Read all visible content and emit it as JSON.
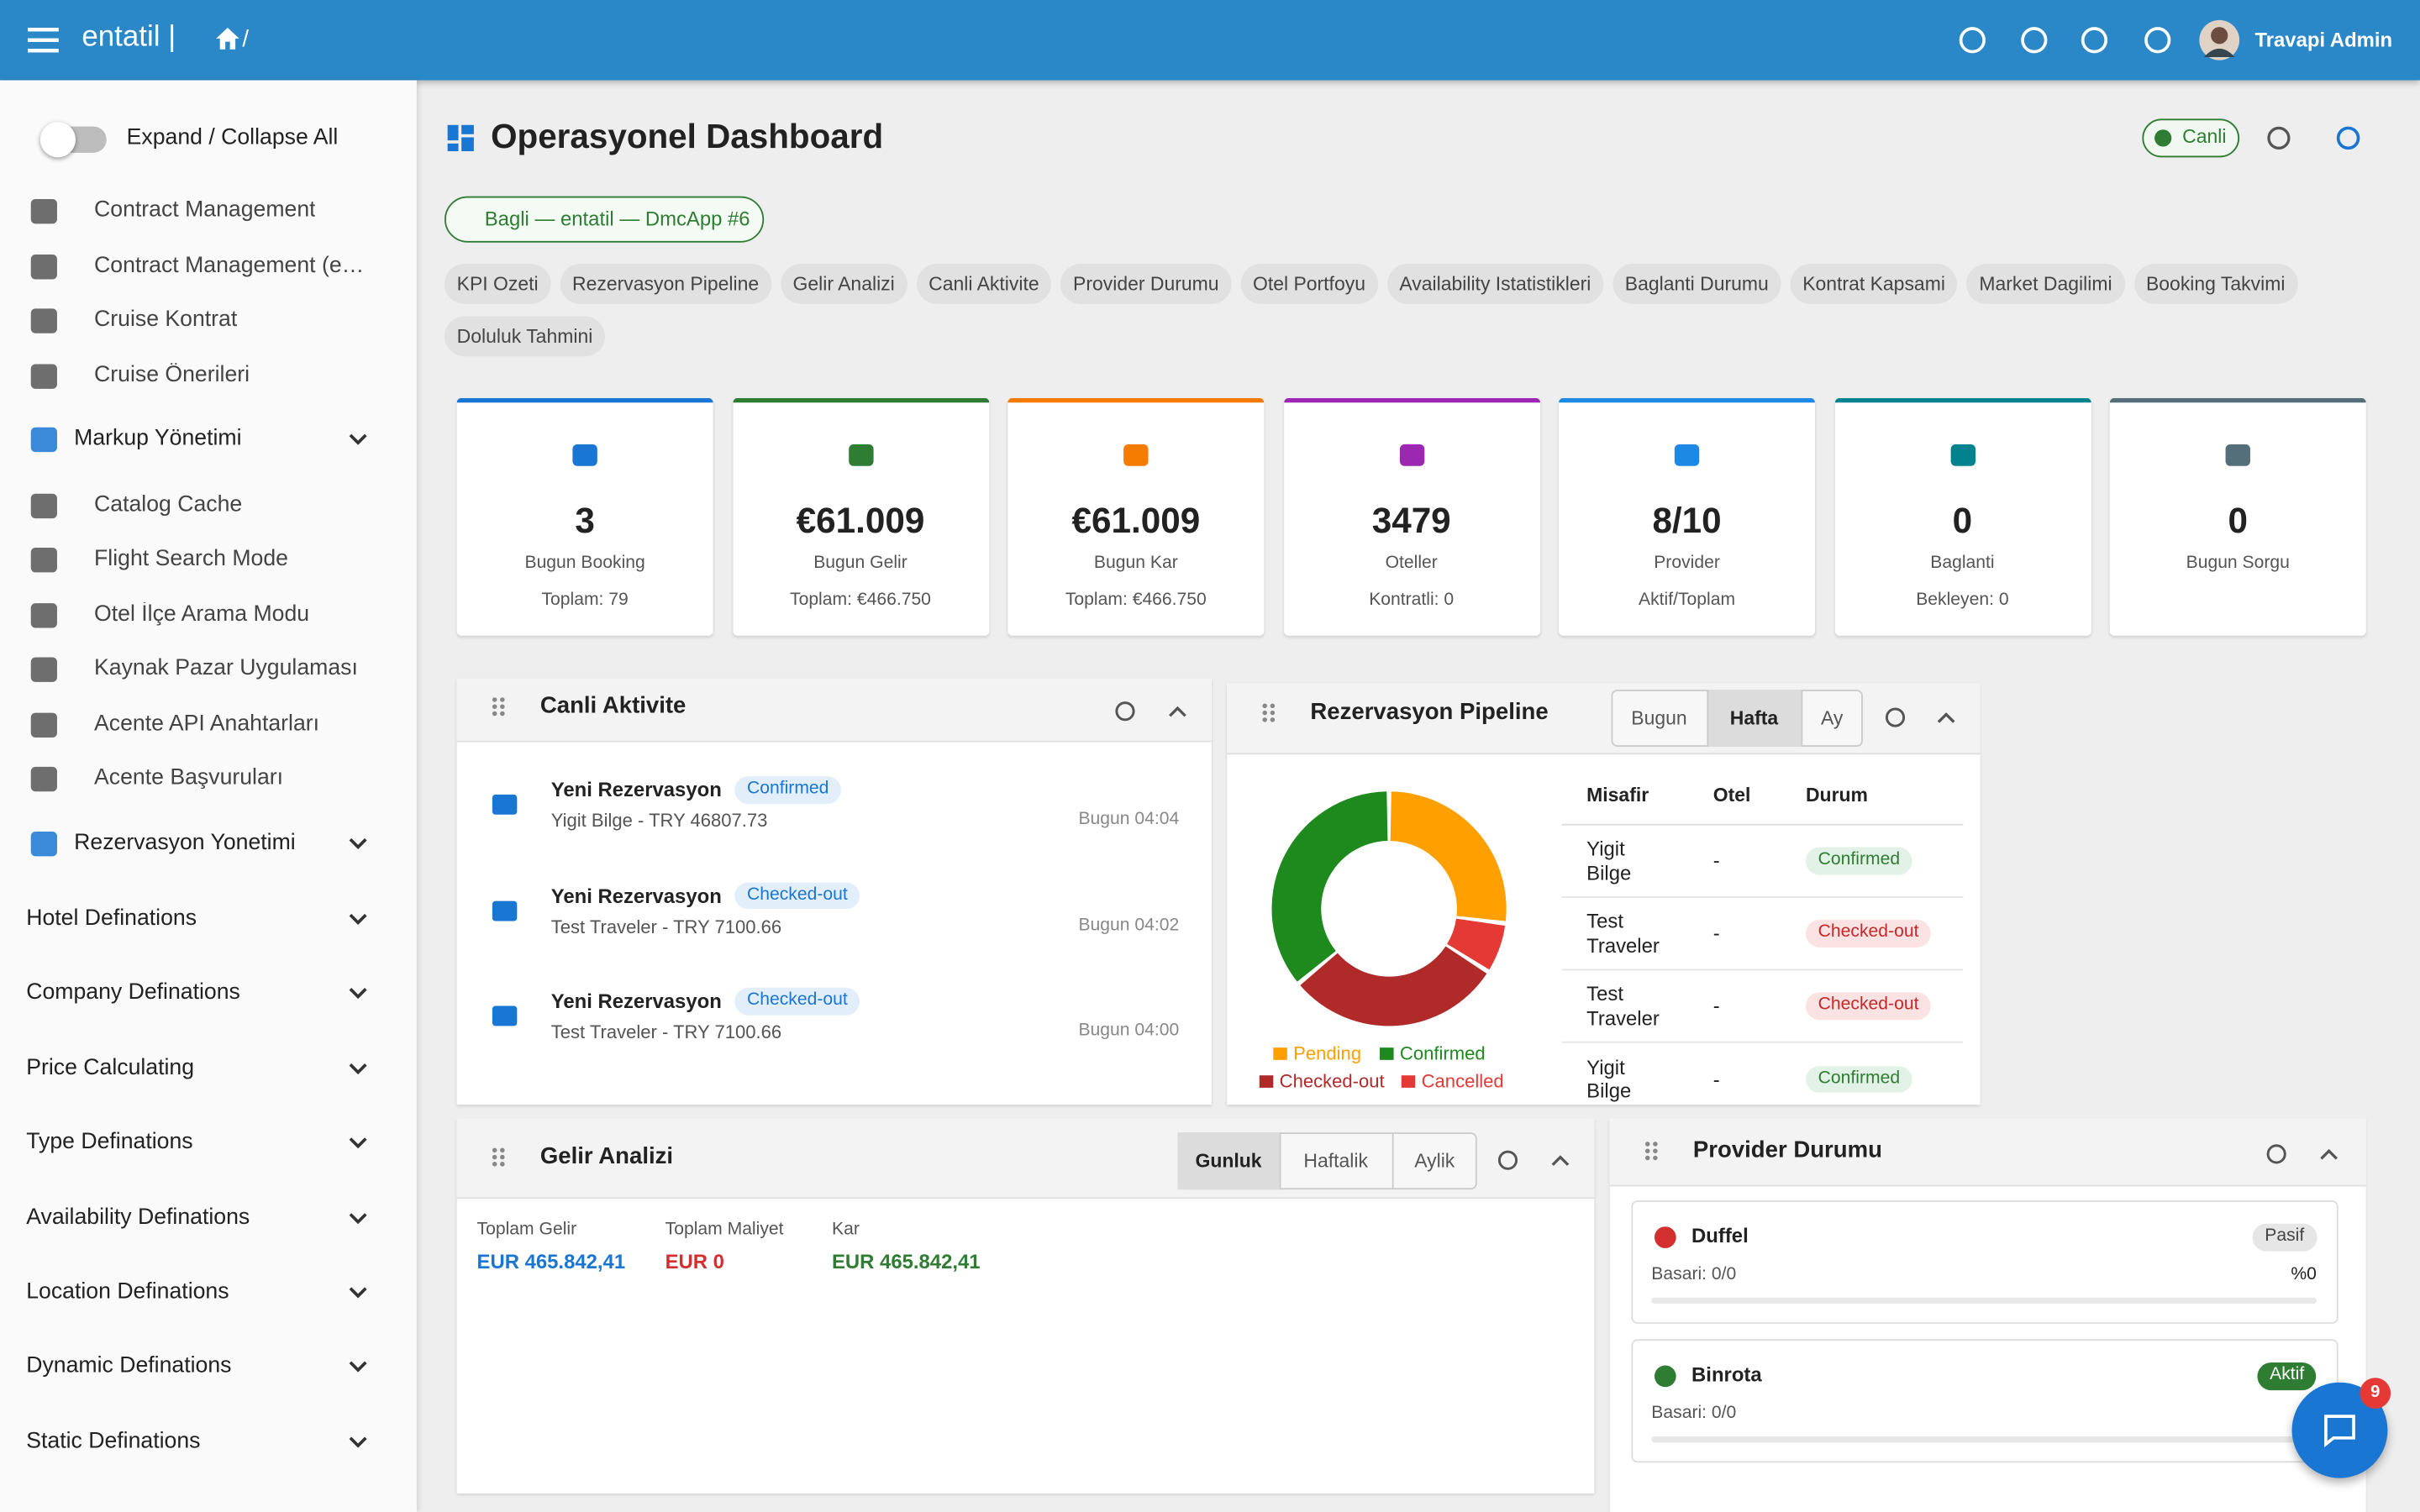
{
  "topbar": {
    "brand": "entatil |",
    "crumb": "/",
    "user": "Travapi Admin"
  },
  "sidebar": {
    "toggle": "Expand / Collapse All",
    "links1": [
      "Contract Management",
      "Contract Management (e…",
      "Cruise Kontrat",
      "Cruise Önerileri"
    ],
    "group1": "Markup Yönetimi",
    "links2": [
      "Catalog Cache",
      "Flight Search Mode",
      "Otel İlçe Arama Modu",
      "Kaynak Pazar Uygulaması",
      "Acente API Anahtarları",
      "Acente Başvuruları"
    ],
    "group2": "Rezervasyon Yonetimi",
    "sections": [
      "Hotel Definations",
      "Company Definations",
      "Price Calculating",
      "Type Definations",
      "Availability Definations",
      "Location Definations",
      "Dynamic Definations",
      "Static Definations"
    ]
  },
  "header": {
    "title": "Operasyonel Dashboard",
    "live": "Canli",
    "connection": "Bagli — entatil — DmcApp #6"
  },
  "chips": [
    "KPI Ozeti",
    "Rezervasyon Pipeline",
    "Gelir Analizi",
    "Canli Aktivite",
    "Provider Durumu",
    "Otel Portfoyu",
    "Availability Istatistikleri",
    "Baglanti Durumu",
    "Kontrat Kapsami",
    "Market Dagilimi",
    "Booking Takvimi",
    "Doluluk Tahmini"
  ],
  "kpis": [
    {
      "value": "3",
      "label": "Bugun Booking",
      "sub": "Toplam: 79",
      "color": "#1976d2"
    },
    {
      "value": "€61.009",
      "label": "Bugun Gelir",
      "sub": "Toplam: €466.750",
      "color": "#2e7d32"
    },
    {
      "value": "€61.009",
      "label": "Bugun Kar",
      "sub": "Toplam: €466.750",
      "color": "#f57c00"
    },
    {
      "value": "3479",
      "label": "Oteller",
      "sub": "Kontratli: 0",
      "color": "#9c27b0"
    },
    {
      "value": "8/10",
      "label": "Provider",
      "sub": "Aktif/Toplam",
      "color": "#1e88e5"
    },
    {
      "value": "0",
      "label": "Baglanti",
      "sub": "Bekleyen: 0",
      "color": "#00838f"
    },
    {
      "value": "0",
      "label": "Bugun Sorgu",
      "color": "#546e7a"
    }
  ],
  "activity": {
    "title": "Canli Aktivite",
    "items": [
      {
        "title": "Yeni Rezervasyon",
        "status": "Confirmed",
        "detail": "Yigit Bilge - TRY 46807.73",
        "time": "Bugun 04:04"
      },
      {
        "title": "Yeni Rezervasyon",
        "status": "Checked-out",
        "detail": "Test Traveler - TRY 7100.66",
        "time": "Bugun 04:02"
      },
      {
        "title": "Yeni Rezervasyon",
        "status": "Checked-out",
        "detail": "Test Traveler - TRY 7100.66",
        "time": "Bugun 04:00"
      }
    ]
  },
  "pipeline": {
    "title": "Rezervasyon Pipeline",
    "periods": [
      "Bugun",
      "Hafta",
      "Ay"
    ],
    "columns": [
      "Misafir",
      "Otel",
      "Durum"
    ],
    "rows": [
      [
        "Yigit Bilge",
        "-",
        "Confirmed"
      ],
      [
        "Test Traveler",
        "-",
        "Checked-out"
      ],
      [
        "Test Traveler",
        "-",
        "Checked-out"
      ],
      [
        "Yigit Bilge",
        "-",
        "Confirmed"
      ]
    ]
  },
  "chart_data": {
    "type": "pie",
    "donut": true,
    "categories": [
      "Pending",
      "Cancelled",
      "Checked-out",
      "Confirmed"
    ],
    "values": [
      27,
      7,
      30,
      36
    ],
    "colors": [
      "#ffa000",
      "#e53935",
      "#b02a2a",
      "#1e8a1e"
    ]
  },
  "revenue": {
    "title": "Gelir Analizi",
    "periods": [
      "Gunluk",
      "Haftalik",
      "Aylik"
    ],
    "stats": [
      {
        "label": "Toplam Gelir",
        "value": "EUR 465.842,41",
        "color": "#1976d2"
      },
      {
        "label": "Toplam Maliyet",
        "value": "EUR 0",
        "color": "#d32f2f"
      },
      {
        "label": "Kar",
        "value": "EUR 465.842,41",
        "color": "#2e7d32"
      }
    ]
  },
  "providers": {
    "title": "Provider Durumu",
    "items": [
      {
        "name": "Duffel",
        "status": "Pasif",
        "rate": "Basari: 0/0",
        "percent": "%0"
      },
      {
        "name": "Binrota",
        "status": "Aktif",
        "rate": "Basari: 0/0"
      }
    ]
  },
  "chat": {
    "badge": "9"
  }
}
